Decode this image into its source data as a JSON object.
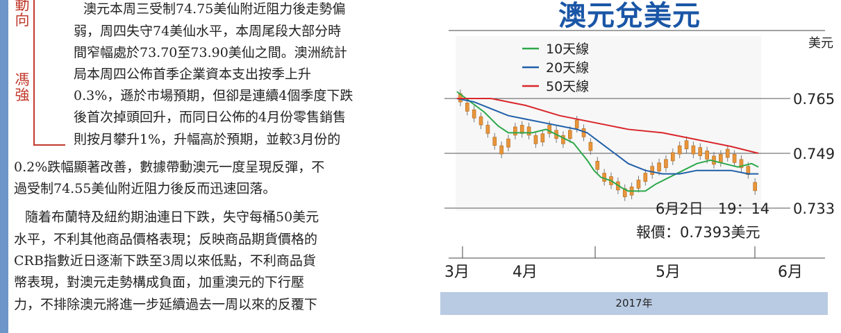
{
  "article": {
    "side_label_top": "動\n向",
    "side_label_mid": "馮\n強",
    "lines": [
      "澳元本周三受制74.75美仙附近阻力後走勢偏",
      "弱，周四失守74美仙水平，本周尾段大部分時",
      "間窄幅處於73.70至73.90美仙之間。澳洲統計",
      "局本周四公佈首季企業資本支出按季上升",
      "0.3%，遜於市場預期，但卻是連續4個季度下跌",
      "後首次掉頭回升，而同日公佈的4月份零售銷售",
      "則按月攀升1%，升幅高於預期，並較3月份的",
      "0.2%跌幅顯著改善，數據帶動澳元一度呈現反彈，不",
      "過受制74.55美仙附近阻力後反而迅速回落。",
      "隨着布蘭特及紐約期油連日下跌，失守每桶50美元",
      "水平，不利其他商品價格表現；反映商品期貨價格的",
      "CRB指數近日逐漸下跌至3周以來低點，不利商品貨",
      "幣表現，對澳元走勢構成負面，加重澳元的下行壓",
      "力，不排除澳元將進一步延續過去一周以來的反覆下"
    ]
  },
  "chart_data": {
    "type": "line",
    "title": "澳元兌美元",
    "unit_label": "美元",
    "x_labels": [
      "3月",
      "4月",
      "5月",
      "6月"
    ],
    "footer": "2017年",
    "y_ticks": [
      "0.765",
      "0.749",
      "0.733"
    ],
    "ylim": [
      0.729,
      0.771
    ],
    "annotation_line1": "6月2日　19：14",
    "annotation_line2": "報價：0.7393美元",
    "legend_position": "top-left",
    "series": [
      {
        "name": "10天線",
        "color": "#2ea84a",
        "x": [
          0,
          4,
          8,
          12,
          15,
          18,
          22,
          26,
          30,
          34,
          38,
          40,
          42,
          45,
          48,
          50,
          52,
          55,
          58,
          62,
          66,
          70,
          74,
          78,
          82,
          86,
          88
        ],
        "y": [
          0.767,
          0.764,
          0.761,
          0.757,
          0.755,
          0.755,
          0.755,
          0.756,
          0.754,
          0.752,
          0.747,
          0.744,
          0.742,
          0.741,
          0.739,
          0.738,
          0.738,
          0.738,
          0.74,
          0.742,
          0.744,
          0.746,
          0.747,
          0.746,
          0.745,
          0.746,
          0.745
        ]
      },
      {
        "name": "20天線",
        "color": "#1f5fa8",
        "x": [
          0,
          5,
          10,
          15,
          20,
          25,
          30,
          35,
          38,
          42,
          46,
          50,
          55,
          60,
          65,
          70,
          75,
          80,
          85,
          88
        ],
        "y": [
          0.765,
          0.764,
          0.762,
          0.76,
          0.759,
          0.758,
          0.757,
          0.756,
          0.755,
          0.752,
          0.749,
          0.746,
          0.744,
          0.743,
          0.743,
          0.744,
          0.744,
          0.744,
          0.743,
          0.743
        ]
      },
      {
        "name": "50天線",
        "color": "#d9262b",
        "x": [
          0,
          10,
          20,
          30,
          40,
          50,
          60,
          70,
          80,
          88
        ],
        "y": [
          0.765,
          0.765,
          0.763,
          0.76,
          0.758,
          0.756,
          0.755,
          0.753,
          0.751,
          0.749
        ]
      }
    ],
    "candles": [
      {
        "x": 1,
        "y": 0.7652
      },
      {
        "x": 3,
        "y": 0.7625
      },
      {
        "x": 5,
        "y": 0.7605
      },
      {
        "x": 7,
        "y": 0.7585
      },
      {
        "x": 9,
        "y": 0.756
      },
      {
        "x": 11,
        "y": 0.7525
      },
      {
        "x": 13,
        "y": 0.75
      },
      {
        "x": 15,
        "y": 0.752
      },
      {
        "x": 17,
        "y": 0.7555
      },
      {
        "x": 19,
        "y": 0.756
      },
      {
        "x": 21,
        "y": 0.7555
      },
      {
        "x": 23,
        "y": 0.753
      },
      {
        "x": 25,
        "y": 0.7535
      },
      {
        "x": 27,
        "y": 0.756
      },
      {
        "x": 29,
        "y": 0.7545
      },
      {
        "x": 31,
        "y": 0.753
      },
      {
        "x": 33,
        "y": 0.7545
      },
      {
        "x": 35,
        "y": 0.7575
      },
      {
        "x": 37,
        "y": 0.755
      },
      {
        "x": 39,
        "y": 0.751
      },
      {
        "x": 41,
        "y": 0.7455
      },
      {
        "x": 43,
        "y": 0.742
      },
      {
        "x": 45,
        "y": 0.741
      },
      {
        "x": 47,
        "y": 0.7395
      },
      {
        "x": 49,
        "y": 0.7375
      },
      {
        "x": 51,
        "y": 0.738
      },
      {
        "x": 53,
        "y": 0.74
      },
      {
        "x": 55,
        "y": 0.742
      },
      {
        "x": 57,
        "y": 0.744
      },
      {
        "x": 59,
        "y": 0.745
      },
      {
        "x": 61,
        "y": 0.746
      },
      {
        "x": 63,
        "y": 0.748
      },
      {
        "x": 65,
        "y": 0.75
      },
      {
        "x": 67,
        "y": 0.7515
      },
      {
        "x": 69,
        "y": 0.75
      },
      {
        "x": 71,
        "y": 0.7495
      },
      {
        "x": 73,
        "y": 0.7485
      },
      {
        "x": 75,
        "y": 0.747
      },
      {
        "x": 77,
        "y": 0.7475
      },
      {
        "x": 79,
        "y": 0.749
      },
      {
        "x": 81,
        "y": 0.7475
      },
      {
        "x": 83,
        "y": 0.746
      },
      {
        "x": 85,
        "y": 0.744
      },
      {
        "x": 87,
        "y": 0.7393
      }
    ]
  }
}
